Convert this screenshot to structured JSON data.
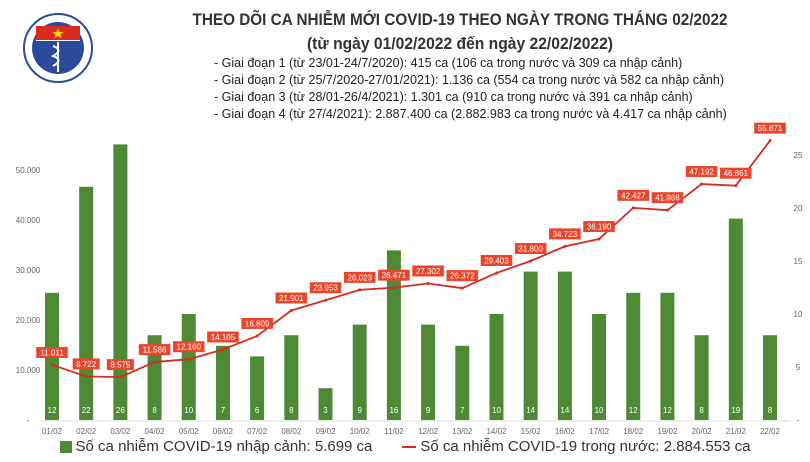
{
  "header": {
    "logo_text": "BỘ Y TẾ - MINISTRY OF HEALTH",
    "title": "THEO DÕI CA NHIỄM MỚI COVID-19 THEO NGÀY TRONG THÁNG 02/2022",
    "subtitle": "(từ ngày 01/02/2022 đến ngày 22/02/2022)",
    "notes": [
      "- Giai đoạn 1 (từ 23/01-24/7/2020): 415 ca (106 ca trong nước và 309 ca nhập cảnh)",
      "- Giai đoạn 2 (từ 25/7/2020-27/01/2021): 1.136 ca (554 ca trong nước và 582 ca nhập cảnh)",
      "- Giai đoạn 3 (từ 28/01-26/4/2021): 1.301 ca (910 ca trong nước và 391 ca nhập cảnh)",
      "- Giai đoạn 4 (từ 27/4/2021): 2.887.400 ca (2.882.983 ca trong nước và 4.417 ca nhập cảnh)"
    ]
  },
  "chart_data": {
    "type": "bar+line",
    "categories": [
      "01/02",
      "02/02",
      "03/02",
      "04/02",
      "05/02",
      "06/02",
      "07/02",
      "08/02",
      "09/02",
      "10/02",
      "11/02",
      "12/02",
      "13/02",
      "14/02",
      "15/02",
      "16/02",
      "17/02",
      "18/02",
      "19/02",
      "20/02",
      "21/02",
      "22/02"
    ],
    "series": [
      {
        "name": "Số ca nhiễm COVID-19 nhập cảnh: 5.699 ca",
        "type": "bar",
        "axis": "right",
        "color": "#4e8a35",
        "values": [
          12,
          22,
          26,
          8,
          10,
          7,
          6,
          8,
          3,
          9,
          16,
          9,
          7,
          10,
          14,
          14,
          10,
          12,
          12,
          8,
          19,
          8
        ],
        "labels": [
          "12",
          "22",
          "26",
          "8",
          "10",
          "7",
          "6",
          "8",
          "3",
          "9",
          "16",
          "9",
          "7",
          "10",
          "14",
          "14",
          "10",
          "12",
          "12",
          "8",
          "19",
          "8"
        ]
      },
      {
        "name": "Số ca nhiễm COVID-19 trong nước: 2.884.553 ca",
        "type": "line",
        "axis": "left",
        "color": "#d92b20",
        "values": [
          11011,
          8722,
          8575,
          11586,
          12160,
          14105,
          16809,
          21901,
          23953,
          26023,
          26471,
          27302,
          26372,
          29403,
          31800,
          34723,
          36190,
          42427,
          41968,
          47192,
          46861,
          55871
        ],
        "labels": [
          "11.011",
          "8.722",
          "8.575",
          "11.586",
          "12.160",
          "14.105",
          "16.809",
          "21.901",
          "23.953",
          "26.023",
          "26.471",
          "27.302",
          "26.372",
          "29.403",
          "31.800",
          "34.723",
          "36.190",
          "42.427",
          "41.968",
          "47.192",
          "46.861",
          "55.871"
        ]
      }
    ],
    "left_axis": {
      "ylim": [
        0,
        50000
      ],
      "ticks": [
        "-",
        "10.000",
        "20.000",
        "30.000",
        "40.000",
        "50.000"
      ]
    },
    "right_axis": {
      "ylim": [
        0,
        25
      ],
      "ticks": [
        "-",
        "5",
        "10",
        "15",
        "20",
        "25"
      ]
    },
    "grid": false,
    "legend": "bottom"
  }
}
